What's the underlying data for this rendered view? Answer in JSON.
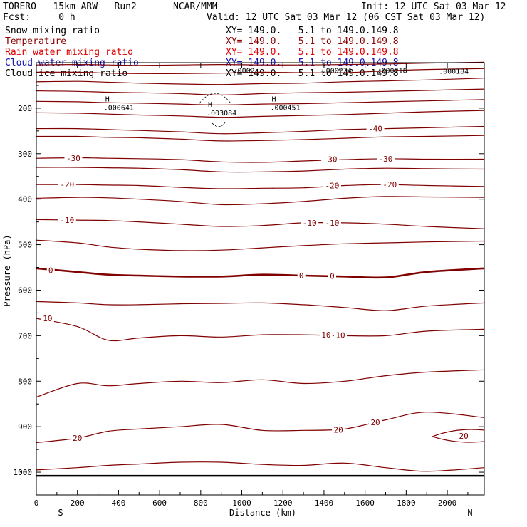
{
  "header": {
    "model": "TORERO   15km ARW   Run2",
    "center": "NCAR/MMM",
    "init": "Init: 12 UTC Sat 03 Mar 12",
    "fcst": "Fcst:     0 h",
    "valid": "Valid: 12 UTC Sat 03 Mar 12 (06 CST Sat 03 Mar 12)"
  },
  "fields": [
    {
      "name": "Snow mixing ratio",
      "color": "#000000",
      "xy": "XY= 149.0.   5.1 to 149.0.149.8"
    },
    {
      "name": "Temperature",
      "color": "#8b0000",
      "xy": "XY= 149.0.   5.1 to 149.0.149.8"
    },
    {
      "name": "Rain water mixing ratio",
      "color": "#e00000",
      "xy": "XY= 149.0.   5.1 to 149.0.149.8"
    },
    {
      "name": "Cloud water mixing ratio",
      "color": "#1010b0",
      "xy": "XY= 149.0.   5.1 to 149.0.149.8"
    },
    {
      "name": "Cloud ice mixing ratio",
      "color": "#000000",
      "xy": "XY= 149.0.   5.1 to 149.0.149.8"
    }
  ],
  "chart_data": {
    "type": "line",
    "title": "",
    "xlabel": "Distance (km)",
    "ylabel": "Pressure (hPa)",
    "xlim": [
      0,
      2180
    ],
    "ylim": [
      1050,
      100
    ],
    "x_ticks": [
      0,
      200,
      400,
      600,
      800,
      1000,
      1200,
      1400,
      1600,
      1800,
      2000
    ],
    "y_ticks": [
      200,
      300,
      400,
      500,
      600,
      700,
      800,
      900,
      1000
    ],
    "x_end_labels": {
      "left": "S",
      "right": "N"
    },
    "contour_color": "#800000",
    "x": [
      0,
      200,
      350,
      500,
      700,
      900,
      1100,
      1300,
      1500,
      1700,
      1900,
      2180
    ],
    "series": [
      {
        "level": -70,
        "values": [
          105,
          104,
          105,
          106,
          105,
          104,
          105,
          105,
          104,
          103,
          101,
          99
        ]
      },
      {
        "level": -65,
        "values": [
          121,
          121,
          123,
          124,
          124,
          123,
          121,
          122,
          122,
          118,
          115,
          113
        ]
      },
      {
        "level": -60,
        "values": [
          142,
          141,
          143,
          145,
          147,
          148,
          146,
          145,
          142,
          140,
          138,
          134
        ]
      },
      {
        "level": -55,
        "values": [
          162,
          163,
          165,
          166,
          168,
          171,
          168,
          166,
          165,
          163,
          161,
          158
        ]
      },
      {
        "level": -50,
        "values": [
          185,
          186,
          188,
          189,
          191,
          193,
          191,
          190,
          188,
          186,
          184,
          181
        ]
      },
      {
        "level": -45,
        "values": [
          210,
          211,
          213,
          215,
          217,
          220,
          218,
          216,
          214,
          211,
          208,
          205
        ]
      },
      {
        "level": -40,
        "values": [
          245,
          245,
          247,
          249,
          252,
          256,
          254,
          251,
          247,
          245,
          243,
          240
        ]
      },
      {
        "level": -35,
        "values": [
          262,
          262,
          264,
          265,
          268,
          272,
          271,
          269,
          266,
          263,
          262,
          260
        ]
      },
      {
        "level": -30,
        "values": [
          310,
          309,
          310,
          311,
          313,
          318,
          319,
          316,
          313,
          311,
          312,
          312
        ]
      },
      {
        "level": -25,
        "values": [
          330,
          330,
          331,
          332,
          335,
          340,
          340,
          338,
          334,
          332,
          333,
          334
        ]
      },
      {
        "level": -20,
        "values": [
          368,
          368,
          369,
          370,
          374,
          377,
          376,
          375,
          370,
          368,
          370,
          372
        ]
      },
      {
        "level": -15,
        "values": [
          398,
          396,
          397,
          400,
          405,
          412,
          410,
          405,
          398,
          394,
          395,
          396
        ]
      },
      {
        "level": -10,
        "values": [
          445,
          446,
          447,
          450,
          455,
          460,
          458,
          452,
          452,
          455,
          460,
          465
        ]
      },
      {
        "level": -5,
        "values": [
          490,
          496,
          505,
          510,
          513,
          512,
          507,
          502,
          498,
          496,
          494,
          492
        ]
      },
      {
        "level": 0,
        "values": [
          552,
          560,
          566,
          568,
          570,
          570,
          566,
          568,
          570,
          572,
          560,
          552
        ]
      },
      {
        "level": 5,
        "values": [
          625,
          628,
          632,
          632,
          630,
          629,
          628,
          632,
          638,
          645,
          635,
          628
        ]
      },
      {
        "level": 10,
        "values": [
          662,
          680,
          710,
          705,
          700,
          703,
          698,
          698,
          700,
          700,
          690,
          686
        ]
      },
      {
        "level": 15,
        "values": [
          835,
          805,
          810,
          805,
          800,
          803,
          797,
          805,
          800,
          788,
          780,
          775
        ]
      },
      {
        "level": 20,
        "values": [
          935,
          925,
          910,
          905,
          900,
          895,
          908,
          908,
          905,
          885,
          868,
          880
        ]
      },
      {
        "level": 25,
        "values": [
          995,
          990,
          985,
          982,
          978,
          978,
          983,
          985,
          980,
          990,
          998,
          990
        ]
      }
    ],
    "contour_labels": [
      {
        "text": "-40",
        "x": 1650,
        "p": 245
      },
      {
        "text": "-30",
        "x": 180,
        "p": 310
      },
      {
        "text": "-30",
        "x": 1430,
        "p": 312
      },
      {
        "text": "-30",
        "x": 1700,
        "p": 311
      },
      {
        "text": "-20",
        "x": 150,
        "p": 368
      },
      {
        "text": "-20",
        "x": 1440,
        "p": 370
      },
      {
        "text": "-20",
        "x": 1720,
        "p": 368
      },
      {
        "text": "-10",
        "x": 150,
        "p": 446
      },
      {
        "text": "-10",
        "x": 1330,
        "p": 452
      },
      {
        "text": "-10",
        "x": 1440,
        "p": 452
      },
      {
        "text": "0",
        "x": 70,
        "p": 556
      },
      {
        "text": "0",
        "x": 1290,
        "p": 568
      },
      {
        "text": "0",
        "x": 1440,
        "p": 569
      },
      {
        "text": "10",
        "x": 55,
        "p": 662
      },
      {
        "text": "10",
        "x": 1410,
        "p": 698
      },
      {
        "text": "10",
        "x": 1480,
        "p": 699
      },
      {
        "text": "20",
        "x": 200,
        "p": 925
      },
      {
        "text": "20",
        "x": 1470,
        "p": 907
      },
      {
        "text": "20",
        "x": 1650,
        "p": 890
      },
      {
        "text": "20",
        "x": 2080,
        "p": 920
      }
    ],
    "extrema": [
      {
        "mark": "H",
        "value": ".000641",
        "x": 370,
        "p": 193
      },
      {
        "mark": "H",
        "value": ".003084",
        "x": 870,
        "p": 205
      },
      {
        "mark": "H",
        "value": ".000451",
        "x": 1180,
        "p": 193
      },
      {
        "mark": "",
        "value": ".000218",
        "x": 1700,
        "p": 112
      },
      {
        "mark": "",
        "value": ".000184",
        "x": 2000,
        "p": 113
      },
      {
        "mark": "",
        "value": ".000274",
        "x": 1430,
        "p": 112
      },
      {
        "mark": "",
        "value": ".0002",
        "x": 1000,
        "p": 112
      }
    ],
    "warm_cell_level": 20
  }
}
